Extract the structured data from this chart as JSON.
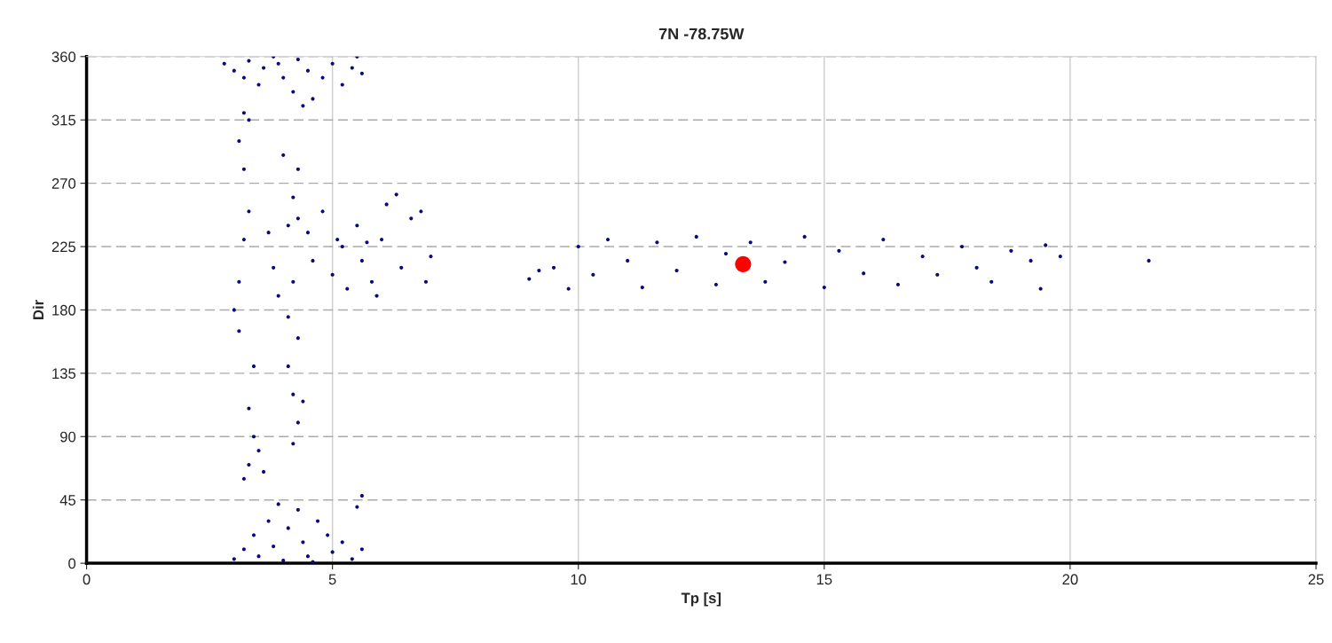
{
  "chart_data": {
    "type": "scatter",
    "title": "7N -78.75W",
    "xlabel": "Tp [s]",
    "ylabel": "Dir",
    "xlim": [
      0,
      25
    ],
    "xticks": [
      0,
      5,
      10,
      15,
      20,
      25
    ],
    "ylim": [
      0,
      360
    ],
    "yticks": [
      0,
      45,
      90,
      135,
      180,
      225,
      270,
      315,
      360
    ],
    "grid": true,
    "marker": "circle",
    "series": [
      {
        "color": "#0a0a78",
        "x": [
          2.8,
          3.0,
          3.2,
          3.3,
          3.5,
          3.6,
          3.8,
          4.0,
          4.2,
          4.3,
          4.5,
          4.6,
          4.8,
          5.0,
          5.2,
          5.4,
          5.5,
          5.6,
          4.4,
          3.9,
          3.3,
          3.2,
          3.1,
          3.2,
          3.3,
          3.2,
          3.1,
          3.0,
          3.1,
          3.4,
          3.3,
          3.4,
          3.3,
          3.2,
          3.5,
          3.6,
          4.0,
          4.3,
          4.2,
          4.1,
          4.2,
          4.1,
          4.3,
          4.1,
          4.2,
          4.3,
          4.2,
          4.4,
          3.7,
          3.8,
          3.9,
          3.0,
          3.2,
          3.4,
          3.5,
          3.7,
          3.8,
          4.0,
          4.1,
          4.3,
          4.4,
          4.5,
          4.7,
          4.9,
          5.0,
          5.2,
          5.4,
          5.6,
          5.5,
          5.6,
          4.6,
          3.9,
          4.3,
          4.5,
          4.8,
          5.0,
          5.2,
          5.3,
          5.5,
          5.6,
          5.8,
          6.0,
          6.1,
          6.3,
          6.4,
          6.6,
          6.8,
          7.0,
          6.9,
          5.9,
          4.6,
          5.1,
          5.7,
          9.0,
          9.2,
          9.5,
          9.8,
          10.0,
          10.3,
          10.6,
          11.0,
          11.3,
          11.6,
          12.0,
          12.4,
          12.8,
          13.0,
          13.5,
          13.8,
          14.2,
          14.6,
          15.0,
          15.3,
          15.8,
          16.2,
          16.5,
          17.0,
          17.3,
          17.8,
          18.1,
          18.4,
          18.8,
          19.2,
          19.5,
          19.8,
          19.4,
          21.6
        ],
        "values": [
          355,
          350,
          345,
          357,
          340,
          352,
          360,
          345,
          335,
          358,
          350,
          330,
          345,
          355,
          340,
          352,
          360,
          348,
          325,
          355,
          315,
          320,
          300,
          280,
          250,
          230,
          200,
          180,
          165,
          140,
          110,
          90,
          70,
          60,
          80,
          65,
          290,
          280,
          260,
          240,
          200,
          175,
          160,
          140,
          120,
          100,
          85,
          115,
          235,
          210,
          190,
          3,
          10,
          20,
          5,
          30,
          12,
          2,
          25,
          38,
          15,
          5,
          30,
          20,
          8,
          15,
          3,
          10,
          40,
          48,
          1,
          42,
          245,
          235,
          250,
          205,
          225,
          195,
          240,
          215,
          200,
          230,
          255,
          262,
          210,
          245,
          250,
          218,
          200,
          190,
          215,
          230,
          228,
          202,
          208,
          210,
          195,
          225,
          205,
          230,
          215,
          196,
          228,
          208,
          232,
          198,
          220,
          228,
          200,
          214,
          232,
          196,
          222,
          206,
          230,
          198,
          218,
          205,
          225,
          210,
          200,
          222,
          215,
          226,
          218,
          195,
          215
        ]
      },
      {
        "color": "#ff0000",
        "x": [
          13.35
        ],
        "values": [
          212.5
        ]
      }
    ]
  }
}
